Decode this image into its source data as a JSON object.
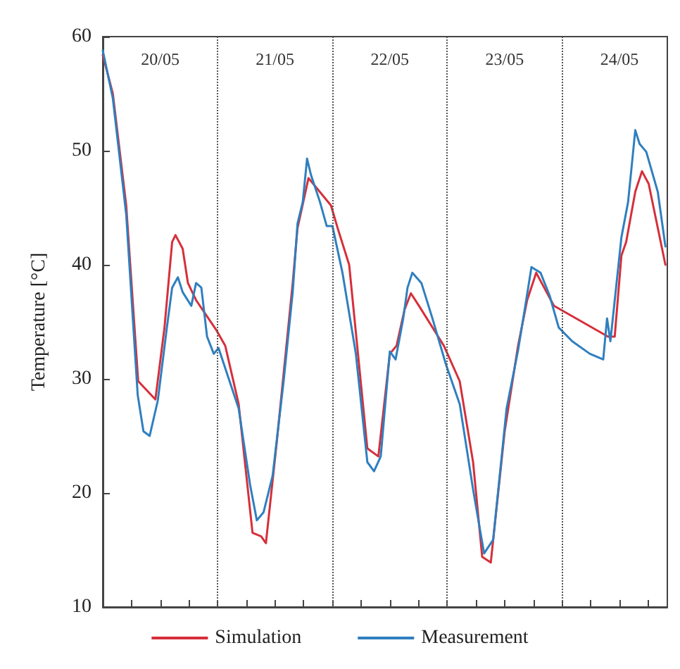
{
  "chart_data": {
    "type": "line",
    "ylabel": "Temperature [°C]",
    "xlim": [
      "--05-20T00:00",
      "--05-24T22:00"
    ],
    "ylim": [
      10,
      60
    ],
    "yticks": [
      10,
      20,
      30,
      40,
      50,
      60
    ],
    "xticks": [
      {
        "value": "--05-20T00:00",
        "label": null
      },
      {
        "value": "--05-20T06:00",
        "label": null
      },
      {
        "value": "--05-20T12:00",
        "label": "20/05"
      },
      {
        "value": "--05-20T18:00",
        "label": null
      },
      {
        "value": "--05-21T00:00",
        "label": null
      },
      {
        "value": "--05-21T06:00",
        "label": null
      },
      {
        "value": "--05-21T12:00",
        "label": "21/05"
      },
      {
        "value": "--05-21T18:00",
        "label": null
      },
      {
        "value": "--05-22T00:00",
        "label": null
      },
      {
        "value": "--05-22T06:00",
        "label": null
      },
      {
        "value": "--05-22T12:00",
        "label": "22/05"
      },
      {
        "value": "--05-22T18:00",
        "label": null
      },
      {
        "value": "--05-23T00:00",
        "label": null
      },
      {
        "value": "--05-23T06:00",
        "label": null
      },
      {
        "value": "--05-23T12:00",
        "label": "23/05"
      },
      {
        "value": "--05-23T18:00",
        "label": null
      },
      {
        "value": "--05-24T00:00",
        "label": null
      },
      {
        "value": "--05-24T06:00",
        "label": null
      },
      {
        "value": "--05-24T12:00",
        "label": "24/05"
      },
      {
        "value": "--05-24T18:00",
        "label": null
      }
    ],
    "grid": false,
    "legend": "bottom",
    "marker": "none",
    "line_style": "solid",
    "ref_lines": [
      {
        "axis": "x",
        "value": "--05-21",
        "line_style": "dotted",
        "color": "#555555"
      },
      {
        "axis": "x",
        "value": "--05-22",
        "line_style": "dotted",
        "color": "#555555"
      },
      {
        "axis": "x",
        "value": "--05-23",
        "line_style": "dotted",
        "color": "#555555"
      },
      {
        "axis": "x",
        "value": "--05-24",
        "line_style": "dotted",
        "color": "#555555"
      }
    ],
    "series": [
      {
        "name": "Simulation",
        "color": "#d62f3a",
        "x": [
          "--05-20T00:00",
          "--05-20T02:06",
          "--05-20T04:54",
          "--05-20T07:24",
          "--05-20T11:00",
          "--05-20T12:54",
          "--05-20T14:30",
          "--05-20T15:12",
          "--05-20T16:42",
          "--05-20T17:48",
          "--05-20T19:30",
          "--05-20T23:42",
          "--05-21T01:36",
          "--05-21T04:24",
          "--05-21T07:18",
          "--05-21T09:06",
          "--05-21T10:06",
          "--05-21T12:24",
          "--05-21T15:42",
          "--05-21T16:42",
          "--05-21T19:00",
          "--05-21T23:42",
          "--05-22T01:06",
          "--05-22T03:30",
          "--05-22T07:18",
          "--05-22T09:36",
          "--05-22T12:00",
          "--05-22T13:24",
          "--05-22T15:06",
          "--05-22T16:24",
          "--05-22T18:06",
          "--05-22T23:18",
          "--05-23T02:36",
          "--05-23T05:24",
          "--05-23T07:18",
          "--05-23T09:06",
          "--05-23T12:00",
          "--05-23T14:48",
          "--05-23T16:42",
          "--05-23T18:36",
          "--05-23T22:18",
          "--05-24T09:36",
          "--05-24T11:00",
          "--05-24T12:24",
          "--05-24T13:24",
          "--05-24T15:18",
          "--05-24T16:42",
          "--05-24T18:06",
          "--05-24T21:36"
        ],
        "values": [
          58.4,
          55.0,
          45.2,
          29.8,
          28.2,
          34.5,
          42.0,
          42.6,
          41.4,
          38.4,
          36.9,
          34.3,
          32.9,
          27.8,
          16.5,
          16.2,
          15.6,
          24.6,
          38.4,
          43.2,
          47.6,
          45.2,
          43.2,
          40.0,
          23.9,
          23.2,
          32.2,
          32.9,
          36.1,
          37.5,
          36.4,
          32.9,
          29.8,
          22.7,
          14.4,
          13.9,
          25.4,
          32.9,
          36.9,
          39.3,
          36.4,
          33.7,
          33.7,
          40.8,
          42.0,
          46.4,
          48.2,
          47.1,
          40.0
        ]
      },
      {
        "name": "Measurement",
        "color": "#2f7fbf",
        "x": [
          "--05-20T00:00",
          "--05-20T02:06",
          "--05-20T04:54",
          "--05-20T07:18",
          "--05-20T08:30",
          "--05-20T09:48",
          "--05-20T11:30",
          "--05-20T13:24",
          "--05-20T14:30",
          "--05-20T15:42",
          "--05-20T16:42",
          "--05-20T18:30",
          "--05-20T19:30",
          "--05-20T20:36",
          "--05-20T21:48",
          "--05-20T23:12",
          "--05-21T00:12",
          "--05-21T02:30",
          "--05-21T04:24",
          "--05-21T06:48",
          "--05-21T08:12",
          "--05-21T09:36",
          "--05-21T11:30",
          "--05-21T13:48",
          "--05-21T15:42",
          "--05-21T16:42",
          "--05-21T17:48",
          "--05-21T18:42",
          "--05-21T19:30",
          "--05-21T21:24",
          "--05-21T22:48",
          "--05-22T00:00",
          "--05-22T02:06",
          "--05-22T04:54",
          "--05-22T07:18",
          "--05-22T08:42",
          "--05-22T10:06",
          "--05-22T12:00",
          "--05-22T13:12",
          "--05-22T14:48",
          "--05-22T15:42",
          "--05-22T16:42",
          "--05-22T18:36",
          "--05-22T20:54",
          "--05-22T23:42",
          "--05-23T02:36",
          "--05-23T05:24",
          "--05-23T07:42",
          "--05-23T09:36",
          "--05-23T12:24",
          "--05-23T14:48",
          "--05-23T16:12",
          "--05-23T17:36",
          "--05-23T19:30",
          "--05-23T21:24",
          "--05-23T23:18",
          "--05-24T02:06",
          "--05-24T05:48",
          "--05-24T08:36",
          "--05-24T09:24",
          "--05-24T10:06",
          "--05-24T12:24",
          "--05-24T13:48",
          "--05-24T15:18",
          "--05-24T16:12",
          "--05-24T17:36",
          "--05-24T20:00",
          "--05-24T21:36"
        ],
        "values": [
          58.8,
          54.6,
          44.4,
          28.6,
          25.4,
          25.0,
          28.1,
          34.5,
          38.0,
          38.9,
          37.6,
          36.4,
          38.4,
          38.0,
          33.7,
          32.2,
          32.7,
          29.8,
          27.4,
          20.7,
          17.6,
          18.3,
          21.5,
          29.8,
          37.6,
          43.6,
          45.5,
          49.3,
          47.9,
          45.5,
          43.4,
          43.4,
          39.3,
          32.2,
          22.7,
          21.9,
          23.2,
          32.4,
          31.7,
          35.3,
          38.0,
          39.3,
          38.4,
          35.3,
          31.3,
          27.8,
          20.3,
          14.7,
          15.9,
          27.4,
          32.5,
          36.1,
          39.8,
          39.3,
          37.3,
          34.5,
          33.3,
          32.2,
          31.7,
          35.3,
          33.3,
          42.4,
          45.5,
          51.8,
          50.6,
          49.9,
          46.4,
          41.6
        ]
      }
    ]
  }
}
